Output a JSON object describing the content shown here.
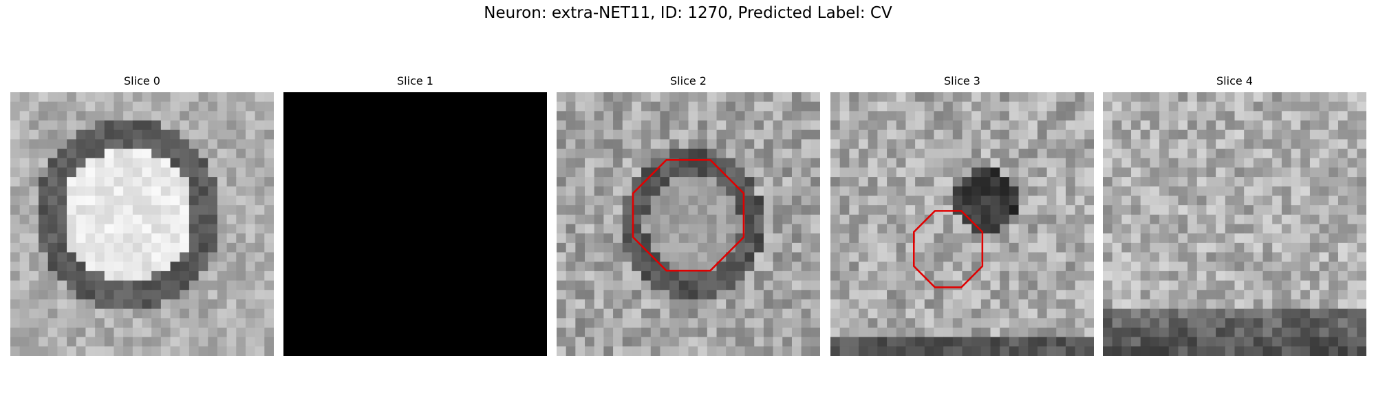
{
  "title": "Neuron: extra-NET11, ID: 1270, Predicted Label: CV",
  "panels": [
    {
      "title": "Slice 0"
    },
    {
      "title": "Slice 1"
    },
    {
      "title": "Slice 2"
    },
    {
      "title": "Slice 3"
    },
    {
      "title": "Slice 4"
    }
  ]
}
